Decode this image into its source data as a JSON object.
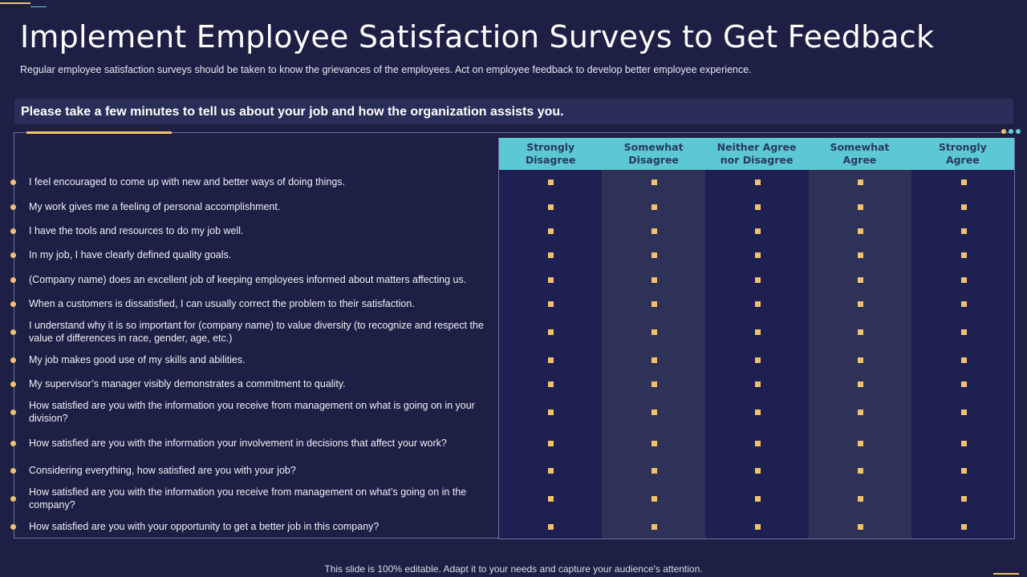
{
  "title": "Implement Employee Satisfaction Surveys to Get Feedback",
  "subtitle": "Regular employee satisfaction surveys should be taken to know the grievances  of the employees. Act on employee feedback to develop better employee experience.",
  "prompt": "Please take a few minutes to tell us about your job and how the organization assists you.",
  "columns": [
    {
      "line1": "Strongly",
      "line2": "Disagree"
    },
    {
      "line1": "Somewhat",
      "line2": "Disagree"
    },
    {
      "line1": "Neither Agree",
      "line2": "nor Disagree"
    },
    {
      "line1": "Somewhat",
      "line2": "Agree"
    },
    {
      "line1": "Strongly",
      "line2": "Agree"
    }
  ],
  "questions": [
    "I feel encouraged  to come up with new and better ways of doing things.",
    "My work gives  me a feeling of personal accomplishment.",
    "I have  the tools and resources to do my job well.",
    "In my job, I have  clearly defined quality goals.",
    "(Company name) does an excellent job of keeping employees informed about matters affecting us.",
    "When a customers is dissatisfied, I can usually correct the problem to their satisfaction.",
    "I understand  why it is so important for (company name) to value diversity (to recognize and respect the value of differences  in race, gender,  age, etc.)",
    "My job makes good use of my skills and abilities.",
    "My supervisor’s  manager visibly demonstrates a commitment to quality.",
    "How satisfied are you with the information  you receive  from management  on what is going on in your division?",
    "How satisfied are you with the information  your involvement  in decisions that affect your work?",
    "Considering everything,  how satisfied are you with your job?",
    "How satisfied are you with the information  you receive  from management  on what’s going on in the company?",
    "How satisfied are you with your opportunity to get a better job in this company?"
  ],
  "footer": "This slide is 100% editable. Adapt it to your needs and capture your audience's attention.",
  "colors": {
    "background": "#1d1f44",
    "header": "#5bc8d3",
    "accent": "#f2c16b",
    "alt_column": "#2f3258"
  }
}
